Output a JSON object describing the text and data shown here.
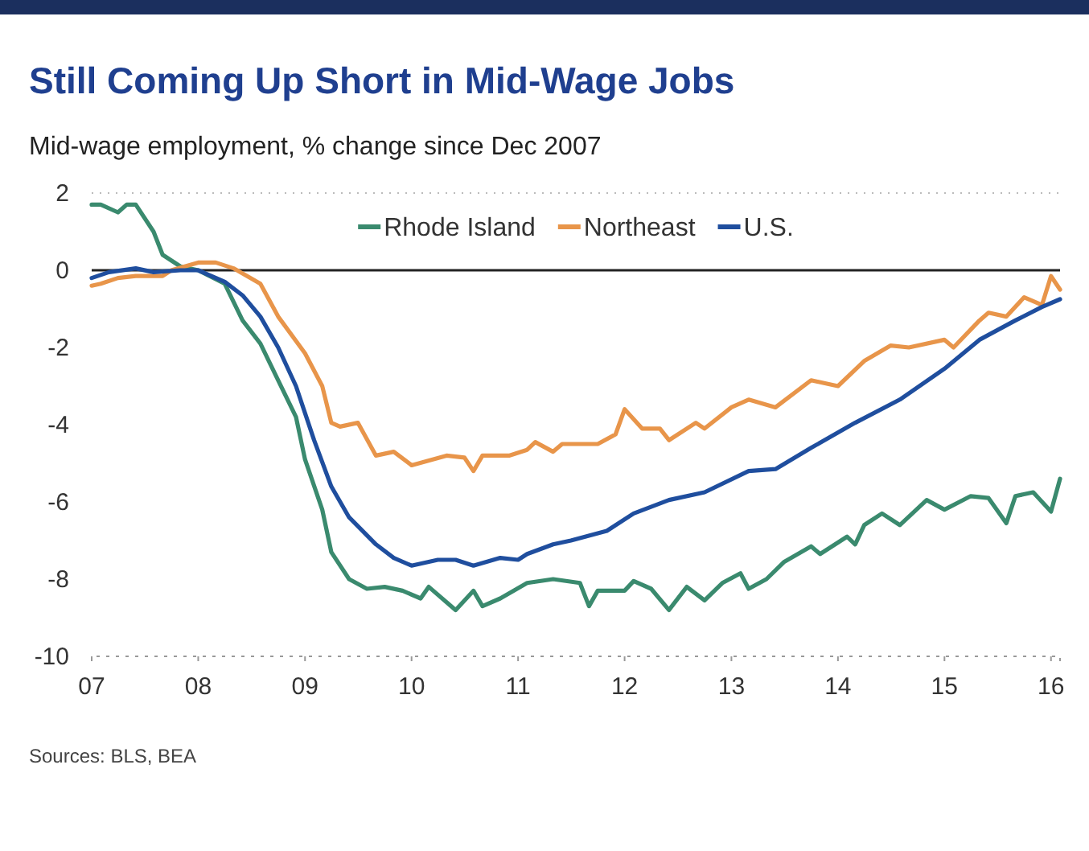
{
  "chart_data": {
    "type": "line",
    "title": "Still Coming Up Short in Mid-Wage Jobs",
    "subtitle": "Mid-wage employment, % change since Dec 2007",
    "annotations": [
      "Sources: BLS, BEA"
    ],
    "xlim": [
      "2007-01",
      "2016-02"
    ],
    "xticks": [
      {
        "value": "2007-01",
        "label": "07"
      },
      {
        "value": "2008-01",
        "label": "08"
      },
      {
        "value": "2009-01",
        "label": "09"
      },
      {
        "value": "2010-01",
        "label": "10"
      },
      {
        "value": "2011-01",
        "label": "11"
      },
      {
        "value": "2012-01",
        "label": "12"
      },
      {
        "value": "2013-01",
        "label": "13"
      },
      {
        "value": "2014-01",
        "label": "14"
      },
      {
        "value": "2015-01",
        "label": "15"
      },
      {
        "value": "2016-01",
        "label": "16"
      }
    ],
    "ylim": [
      -10,
      2
    ],
    "yticks": [
      2,
      0,
      -2,
      -4,
      -6,
      -8,
      -10
    ],
    "grid": false,
    "legend": "top",
    "ref_lines": [
      {
        "axis": "y",
        "value": 0,
        "color": "#222222",
        "line_style": "solid"
      }
    ],
    "series": [
      {
        "name": "Rhode Island",
        "color": "#3a8a6e",
        "x": [
          "2007-01",
          "2007-02",
          "2007-04",
          "2007-05",
          "2007-06",
          "2007-08",
          "2007-09",
          "2007-11",
          "2008-01",
          "2008-04",
          "2008-06",
          "2008-08",
          "2008-10",
          "2008-12",
          "2009-01",
          "2009-03",
          "2009-04",
          "2009-06",
          "2009-08",
          "2009-10",
          "2009-12",
          "2010-02",
          "2010-03",
          "2010-05",
          "2010-06",
          "2010-08",
          "2010-09",
          "2010-11",
          "2011-02",
          "2011-05",
          "2011-08",
          "2011-09",
          "2011-10",
          "2012-01",
          "2012-02",
          "2012-04",
          "2012-06",
          "2012-08",
          "2012-10",
          "2012-12",
          "2013-02",
          "2013-03",
          "2013-05",
          "2013-07",
          "2013-10",
          "2013-11",
          "2014-02",
          "2014-03",
          "2014-04",
          "2014-06",
          "2014-08",
          "2014-11",
          "2015-01",
          "2015-04",
          "2015-06",
          "2015-08",
          "2015-09",
          "2015-11",
          "2016-01",
          "2016-02"
        ],
        "values": [
          1.7,
          1.7,
          1.5,
          1.7,
          1.7,
          1.0,
          0.4,
          0.1,
          0,
          -0.35,
          -1.3,
          -1.9,
          -2.85,
          -3.8,
          -4.9,
          -6.2,
          -7.3,
          -8.0,
          -8.25,
          -8.2,
          -8.3,
          -8.5,
          -8.2,
          -8.6,
          -8.8,
          -8.3,
          -8.7,
          -8.5,
          -8.1,
          -8.0,
          -8.1,
          -8.7,
          -8.3,
          -8.3,
          -8.05,
          -8.25,
          -8.8,
          -8.2,
          -8.55,
          -8.1,
          -7.85,
          -8.25,
          -8.0,
          -7.55,
          -7.15,
          -7.35,
          -6.9,
          -7.1,
          -6.6,
          -6.3,
          -6.6,
          -5.95,
          -6.2,
          -5.85,
          -5.9,
          -6.55,
          -5.85,
          -5.75,
          -6.25,
          -5.4
        ]
      },
      {
        "name": "Northeast",
        "color": "#e8954a",
        "x": [
          "2007-01",
          "2007-02",
          "2007-04",
          "2007-06",
          "2007-09",
          "2007-10",
          "2008-01",
          "2008-03",
          "2008-05",
          "2008-08",
          "2008-10",
          "2009-01",
          "2009-03",
          "2009-04",
          "2009-05",
          "2009-07",
          "2009-09",
          "2009-11",
          "2010-01",
          "2010-05",
          "2010-07",
          "2010-08",
          "2010-09",
          "2010-12",
          "2011-02",
          "2011-03",
          "2011-05",
          "2011-06",
          "2011-10",
          "2011-12",
          "2012-01",
          "2012-03",
          "2012-05",
          "2012-06",
          "2012-09",
          "2012-10",
          "2013-01",
          "2013-03",
          "2013-06",
          "2013-10",
          "2014-01",
          "2014-04",
          "2014-07",
          "2014-09",
          "2015-01",
          "2015-02",
          "2015-05",
          "2015-06",
          "2015-08",
          "2015-10",
          "2015-12",
          "2016-01",
          "2016-02"
        ],
        "values": [
          -0.4,
          -0.35,
          -0.2,
          -0.15,
          -0.15,
          0,
          0.2,
          0.2,
          0.05,
          -0.35,
          -1.2,
          -2.15,
          -3.0,
          -3.95,
          -4.05,
          -3.95,
          -4.8,
          -4.7,
          -5.05,
          -4.8,
          -4.85,
          -5.2,
          -4.8,
          -4.8,
          -4.65,
          -4.45,
          -4.7,
          -4.5,
          -4.5,
          -4.25,
          -3.6,
          -4.1,
          -4.1,
          -4.4,
          -3.95,
          -4.1,
          -3.55,
          -3.35,
          -3.55,
          -2.85,
          -3.0,
          -2.35,
          -1.95,
          -2.0,
          -1.8,
          -2.0,
          -1.3,
          -1.1,
          -1.2,
          -0.7,
          -0.9,
          -0.15,
          -0.5
        ]
      },
      {
        "name": "U.S.",
        "color": "#1f4e9e",
        "x": [
          "2007-01",
          "2007-03",
          "2007-06",
          "2007-08",
          "2007-11",
          "2008-01",
          "2008-04",
          "2008-06",
          "2008-08",
          "2008-10",
          "2008-12",
          "2009-02",
          "2009-04",
          "2009-06",
          "2009-09",
          "2009-11",
          "2010-01",
          "2010-04",
          "2010-06",
          "2010-08",
          "2010-11",
          "2011-01",
          "2011-02",
          "2011-05",
          "2011-07",
          "2011-11",
          "2012-02",
          "2012-06",
          "2012-10",
          "2013-03",
          "2013-06",
          "2013-10",
          "2014-03",
          "2014-08",
          "2015-01",
          "2015-05",
          "2015-09",
          "2015-12",
          "2016-02"
        ],
        "values": [
          -0.2,
          -0.05,
          0.05,
          -0.05,
          0,
          0,
          -0.3,
          -0.65,
          -1.2,
          -2.0,
          -3.0,
          -4.4,
          -5.6,
          -6.4,
          -7.1,
          -7.45,
          -7.65,
          -7.5,
          -7.5,
          -7.65,
          -7.45,
          -7.5,
          -7.35,
          -7.1,
          -7.0,
          -6.75,
          -6.3,
          -5.95,
          -5.75,
          -5.2,
          -5.15,
          -4.6,
          -3.95,
          -3.35,
          -2.55,
          -1.8,
          -1.3,
          -0.95,
          -0.75
        ]
      }
    ]
  }
}
